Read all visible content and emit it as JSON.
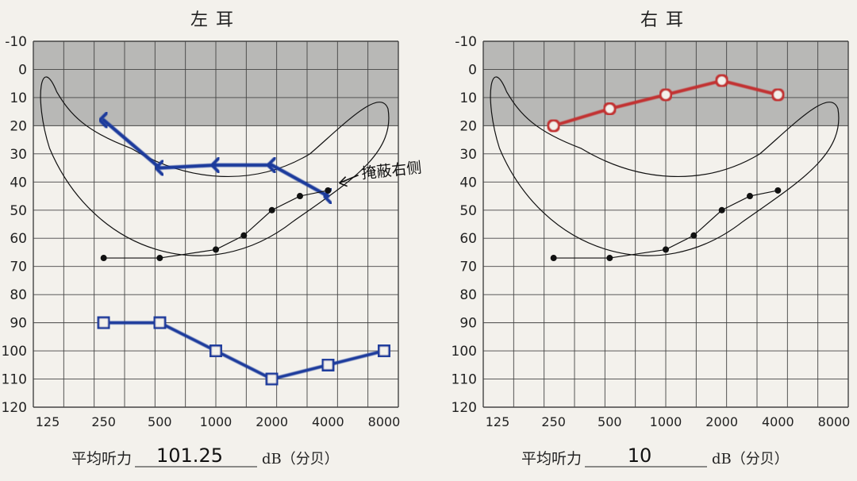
{
  "y_ticks": [
    -10,
    0,
    10,
    20,
    30,
    40,
    50,
    60,
    70,
    80,
    90,
    100,
    110,
    120
  ],
  "x_ticks": [
    "125",
    "250",
    "500",
    "1000",
    "2000",
    "4000",
    "8000"
  ],
  "colors": {
    "grid": "#444444",
    "shade": "#b8b8b6",
    "ink_blue": "#1c3a9c",
    "ink_light_blue": "#2f70c8",
    "ink_red": "#c23030",
    "black": "#111111"
  },
  "chart_data": [
    {
      "type": "line",
      "title": "左耳",
      "y_reversed": true,
      "ylim": [
        -10,
        120
      ],
      "x_scale": "log2",
      "x_ticks": [
        "125",
        "250",
        "500",
        "1000",
        "2000",
        "4000",
        "8000"
      ],
      "shaded_band": [
        -10,
        20
      ],
      "speech_banana": {
        "color": "#111111",
        "description": "speech banana outline"
      },
      "series": [
        {
          "marker": "bracket",
          "color": "#1c3a9c",
          "points": [
            [
              250,
              18
            ],
            [
              500,
              35
            ],
            [
              1000,
              34
            ],
            [
              2000,
              34
            ],
            [
              4000,
              45
            ]
          ]
        },
        {
          "marker": "square",
          "color": "#1c3a9c",
          "points": [
            [
              250,
              90
            ],
            [
              500,
              90
            ],
            [
              1000,
              100
            ],
            [
              2000,
              110
            ],
            [
              4000,
              105
            ],
            [
              8000,
              100
            ]
          ]
        },
        {
          "marker": "dot",
          "color": "#111111",
          "points": [
            [
              250,
              67
            ],
            [
              500,
              67
            ],
            [
              1000,
              64
            ],
            [
              1414,
              59
            ],
            [
              2000,
              50
            ],
            [
              2828,
              45
            ],
            [
              4000,
              43
            ]
          ]
        }
      ],
      "annotation": {
        "text": "掩蔽右侧",
        "x": 6300,
        "y": 37
      },
      "footer_label": "平均听力",
      "footer_value": "101.25",
      "footer_unit": "dB（分贝）"
    },
    {
      "type": "line",
      "title": "右耳",
      "y_reversed": true,
      "ylim": [
        -10,
        120
      ],
      "x_scale": "log2",
      "x_ticks": [
        "125",
        "250",
        "500",
        "1000",
        "2000",
        "4000",
        "8000"
      ],
      "shaded_band": [
        -10,
        20
      ],
      "speech_banana": {
        "color": "#111111",
        "description": "speech banana outline"
      },
      "series": [
        {
          "marker": "circle",
          "color": "#c23030",
          "points": [
            [
              250,
              20
            ],
            [
              500,
              14
            ],
            [
              1000,
              9
            ],
            [
              2000,
              4
            ],
            [
              4000,
              9
            ]
          ]
        },
        {
          "marker": "dot",
          "color": "#111111",
          "points": [
            [
              250,
              67
            ],
            [
              500,
              67
            ],
            [
              1000,
              64
            ],
            [
              1414,
              59
            ],
            [
              2000,
              50
            ],
            [
              2828,
              45
            ],
            [
              4000,
              43
            ]
          ]
        }
      ],
      "footer_label": "平均听力",
      "footer_value": "10",
      "footer_unit": "dB（分贝）"
    }
  ]
}
